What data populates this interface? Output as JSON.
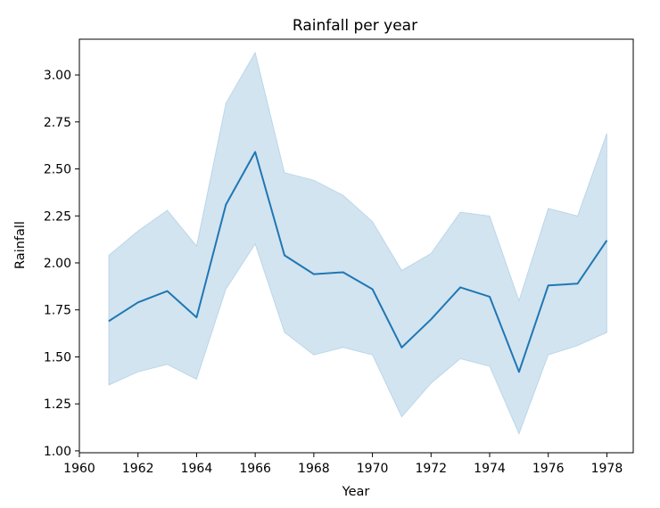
{
  "chart_data": {
    "type": "line",
    "title": "Rainfall per year",
    "xlabel": "Year",
    "ylabel": "Rainfall",
    "xlim": [
      1960,
      1978.9
    ],
    "ylim": [
      0.99,
      3.19
    ],
    "x_ticks": [
      1960,
      1962,
      1964,
      1966,
      1968,
      1970,
      1972,
      1974,
      1976,
      1978
    ],
    "y_ticks": [
      1.0,
      1.25,
      1.5,
      1.75,
      2.0,
      2.25,
      2.5,
      2.75,
      3.0
    ],
    "y_tick_labels": [
      "1.00",
      "1.25",
      "1.50",
      "1.75",
      "2.00",
      "2.25",
      "2.50",
      "2.75",
      "3.00"
    ],
    "grid": false,
    "line_color": "#1f77b4",
    "band_color": "#1f77b4",
    "x": [
      1961,
      1962,
      1963,
      1964,
      1965,
      1966,
      1967,
      1968,
      1969,
      1970,
      1971,
      1972,
      1973,
      1974,
      1975,
      1976,
      1977,
      1978
    ],
    "y": [
      1.69,
      1.79,
      1.85,
      1.71,
      2.31,
      2.59,
      2.04,
      1.94,
      1.95,
      1.86,
      1.55,
      1.7,
      1.87,
      1.82,
      1.42,
      1.88,
      1.89,
      2.12
    ],
    "ci_lower": [
      1.35,
      1.42,
      1.46,
      1.38,
      1.86,
      2.1,
      1.63,
      1.51,
      1.55,
      1.51,
      1.18,
      1.36,
      1.49,
      1.45,
      1.09,
      1.51,
      1.56,
      1.63
    ],
    "ci_upper": [
      2.04,
      2.17,
      2.28,
      2.09,
      2.85,
      3.12,
      2.48,
      2.44,
      2.36,
      2.22,
      1.96,
      2.05,
      2.27,
      2.25,
      1.8,
      2.29,
      2.25,
      2.69
    ]
  }
}
